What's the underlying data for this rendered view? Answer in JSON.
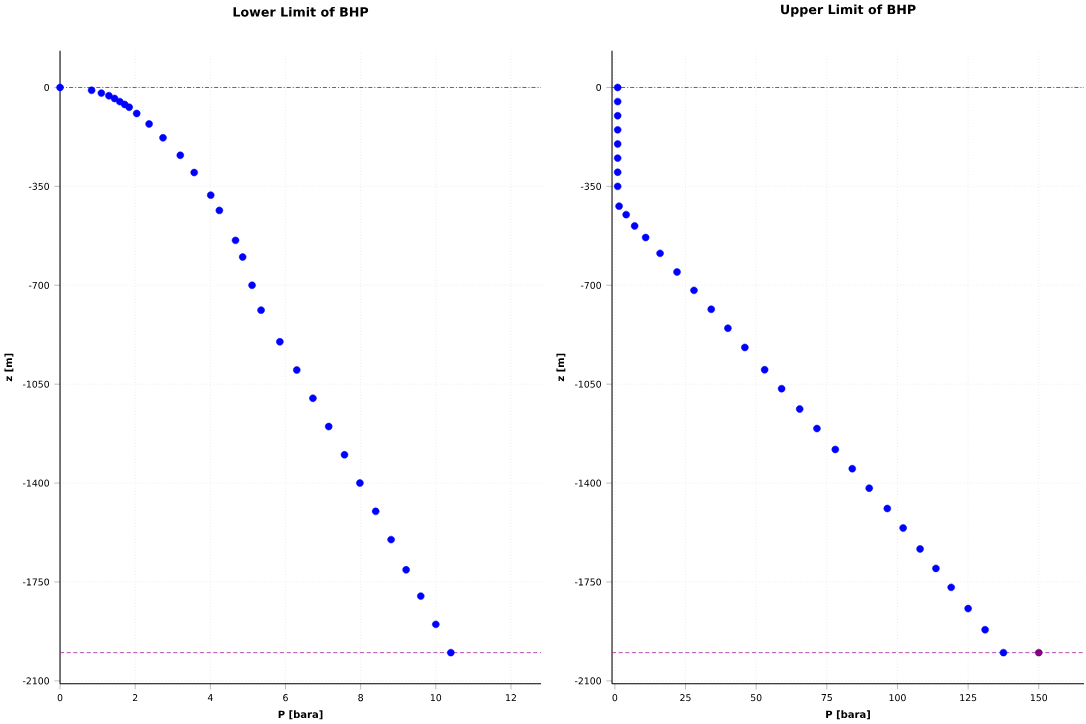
{
  "chart_data": [
    {
      "type": "scatter",
      "title": "Lower Limit of BHP",
      "xlabel": "P [bara]",
      "ylabel": "z [m]",
      "xlim": [
        0,
        12.8
      ],
      "ylim": [
        -2110,
        130
      ],
      "xticks": [
        0,
        2,
        4,
        6,
        8,
        10,
        12
      ],
      "yticks": [
        0,
        -350,
        -700,
        -1050,
        -1400,
        -1750,
        -2100
      ],
      "grid": true,
      "marker": "circle",
      "series": [
        {
          "color": "#0000ff",
          "x": [
            0,
            0.84,
            1.1,
            1.3,
            1.45,
            1.59,
            1.72,
            1.84,
            2.04,
            2.37,
            2.74,
            3.2,
            3.57,
            4.01,
            4.24,
            4.67,
            4.86,
            5.11,
            5.35,
            5.85,
            6.3,
            6.73,
            7.15,
            7.57,
            7.98,
            8.4,
            8.81,
            9.21,
            9.6,
            10.0,
            10.4
          ],
          "values": [
            0,
            -10,
            -20,
            -29,
            -39,
            -50,
            -60,
            -70,
            -92,
            -129,
            -178,
            -240,
            -301,
            -381,
            -435,
            -541,
            -600,
            -700,
            -788,
            -900,
            -1000,
            -1100,
            -1200,
            -1300,
            -1400,
            -1500,
            -1600,
            -1707,
            -1800,
            -1900,
            -2000
          ]
        }
      ],
      "ref_lines": [
        {
          "axis": "y",
          "value": 0,
          "color": "#404040",
          "line_style": "dashdot"
        },
        {
          "axis": "y",
          "value": -2000,
          "color": "#a020a0",
          "line_style": "dashed"
        }
      ]
    },
    {
      "type": "scatter",
      "title": "Upper Limit of BHP",
      "xlabel": "P [bara]",
      "ylabel": "z [m]",
      "xlim": [
        -1,
        166
      ],
      "ylim": [
        -2110,
        130
      ],
      "xticks": [
        0,
        25,
        50,
        75,
        100,
        125,
        150
      ],
      "yticks": [
        0,
        -350,
        -700,
        -1050,
        -1400,
        -1750,
        -2100
      ],
      "grid": true,
      "marker": "circle",
      "series": [
        {
          "color": "#0000ff",
          "x": [
            1,
            1,
            1,
            1,
            1,
            1,
            1,
            1,
            1.5,
            4,
            7,
            10.9,
            16,
            22,
            28,
            34.1,
            40,
            46,
            53,
            59,
            65.4,
            71.5,
            78,
            84,
            90,
            96.4,
            102,
            108,
            113.6,
            119,
            125,
            131,
            137.5
          ],
          "values": [
            0,
            -50,
            -100,
            -150,
            -200,
            -250,
            -300,
            -350,
            -420,
            -450,
            -490,
            -531,
            -587,
            -653,
            -718,
            -785,
            -852,
            -920,
            -999,
            -1066,
            -1138,
            -1207,
            -1281,
            -1349,
            -1418,
            -1490,
            -1559,
            -1633,
            -1702,
            -1769,
            -1844,
            -1919,
            -2000
          ]
        },
        {
          "color": "#800080",
          "x": [
            150
          ],
          "values": [
            -2000
          ]
        }
      ],
      "ref_lines": [
        {
          "axis": "y",
          "value": 0,
          "color": "#404040",
          "line_style": "dashdot"
        },
        {
          "axis": "y",
          "value": -2000,
          "color": "#a020a0",
          "line_style": "dashed"
        }
      ]
    }
  ]
}
